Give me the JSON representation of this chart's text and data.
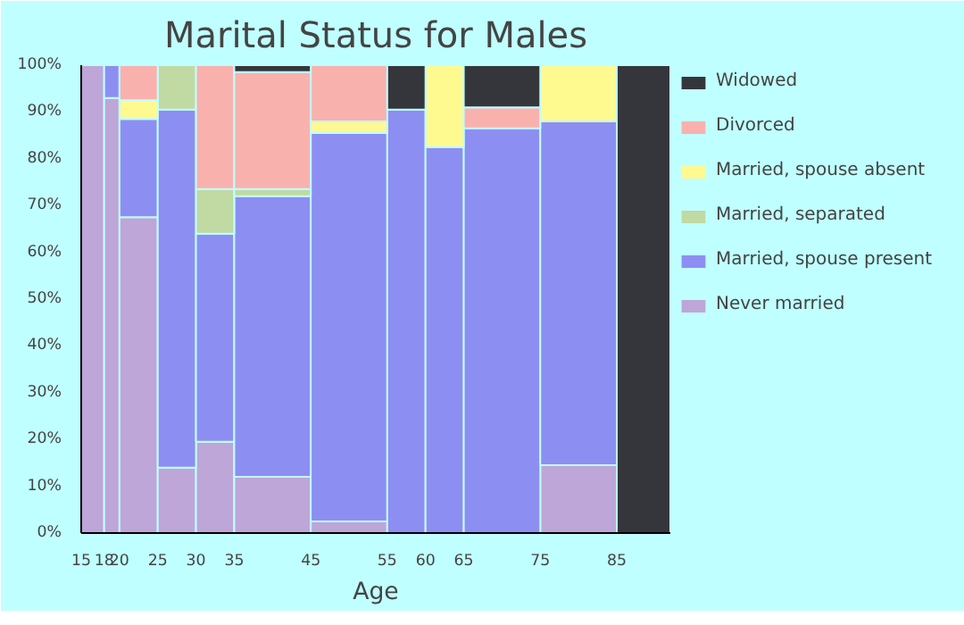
{
  "chart_data": {
    "type": "bar",
    "stacked": true,
    "title": "Marital Status for Males",
    "xlabel": "Age",
    "x": [
      16.5,
      19,
      22.5,
      27.5,
      32.5,
      40,
      50,
      57.5,
      62.5,
      70,
      80,
      88.5
    ],
    "xlim": [
      15,
      92
    ],
    "xticks": [
      15,
      18,
      20,
      25,
      30,
      35,
      45,
      55,
      60,
      65,
      75,
      85
    ],
    "ylim": [
      0,
      100
    ],
    "yticks": [
      {
        "value": 0,
        "label": "0%"
      },
      {
        "value": 10,
        "label": "10%"
      },
      {
        "value": 20,
        "label": "20%"
      },
      {
        "value": 30,
        "label": "30%"
      },
      {
        "value": 40,
        "label": "40%"
      },
      {
        "value": 50,
        "label": "50%"
      },
      {
        "value": 60,
        "label": "60%"
      },
      {
        "value": 70,
        "label": "70%"
      },
      {
        "value": 80,
        "label": "80%"
      },
      {
        "value": 90,
        "label": "90%"
      },
      {
        "value": 100,
        "label": "100%"
      }
    ],
    "legend": "right",
    "series": [
      {
        "name": "Never married",
        "color": "#bea6d8",
        "values": [
          100,
          93,
          67.5,
          14,
          19.5,
          12,
          2.5,
          null,
          null,
          null,
          14.5,
          null
        ]
      },
      {
        "name": "Married, spouse present",
        "color": "#8d8ef2",
        "values": [
          null,
          7,
          21,
          76.5,
          44.5,
          60,
          83,
          90.5,
          82.5,
          86.5,
          73.5,
          null
        ]
      },
      {
        "name": "Married, separated",
        "color": "#c1d9a3",
        "values": [
          null,
          null,
          null,
          9.5,
          9.5,
          1.5,
          null,
          null,
          null,
          null,
          null,
          null
        ]
      },
      {
        "name": "Married, spouse absent",
        "color": "#fffa8f",
        "values": [
          null,
          null,
          4,
          null,
          null,
          null,
          2.5,
          null,
          17.5,
          null,
          12,
          null
        ]
      },
      {
        "name": "Divorced",
        "color": "#f9b1ae",
        "values": [
          null,
          null,
          7.5,
          null,
          26.5,
          25,
          12,
          null,
          null,
          4.5,
          null,
          null
        ]
      },
      {
        "name": "Widowed",
        "color": "#35363b",
        "values": [
          null,
          null,
          null,
          null,
          null,
          1.5,
          null,
          9.5,
          null,
          9,
          null,
          100
        ]
      }
    ]
  }
}
